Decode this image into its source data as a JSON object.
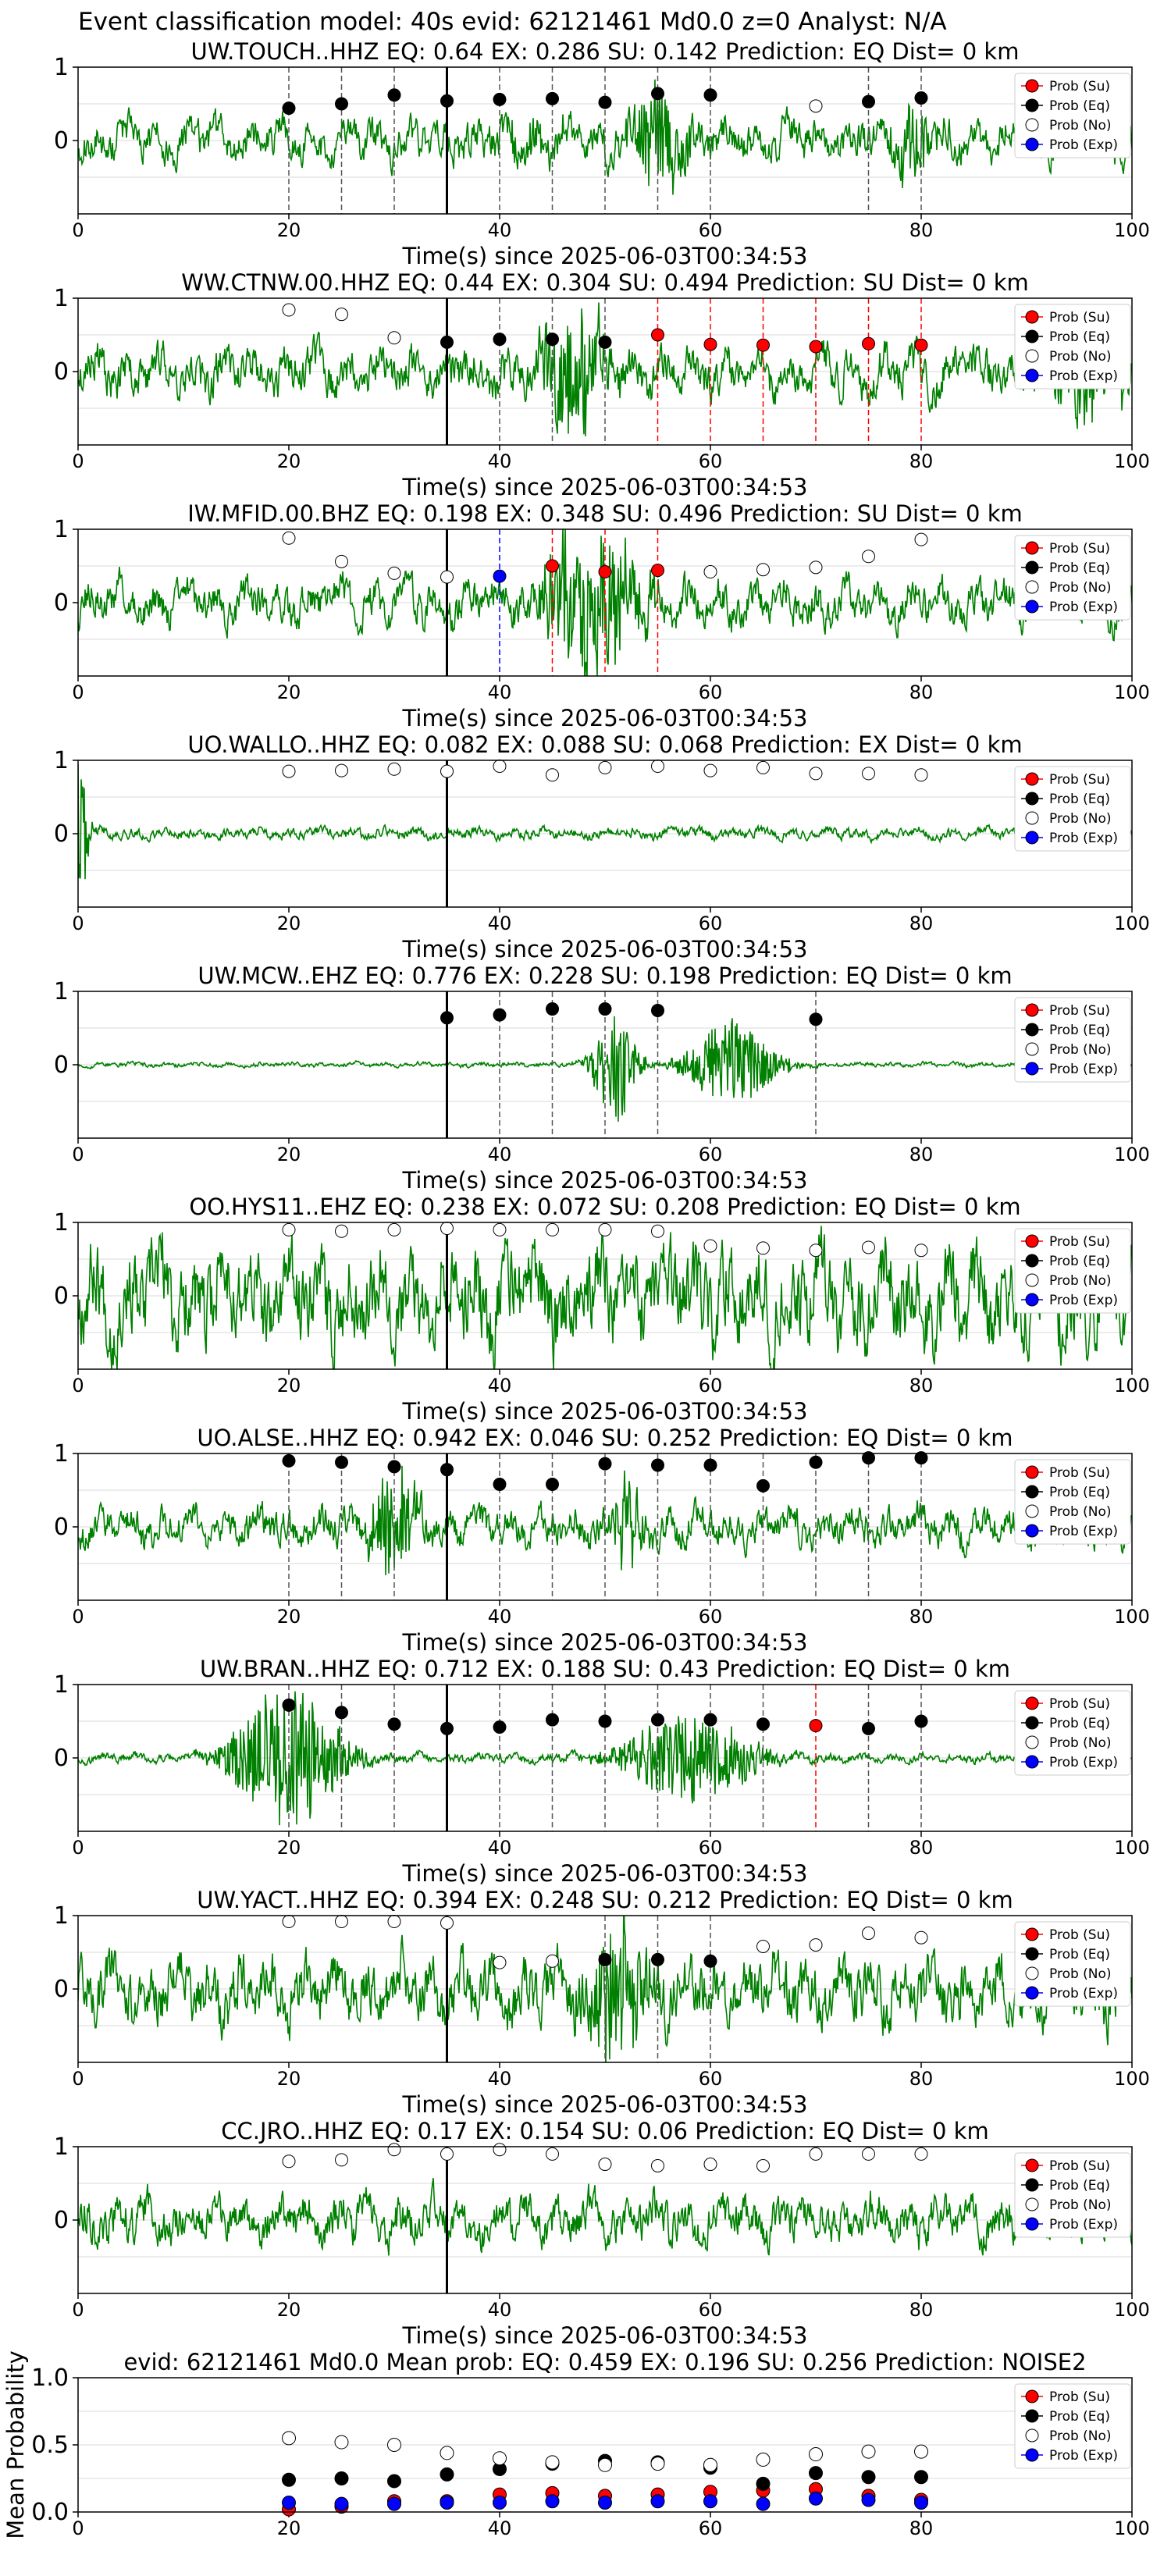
{
  "figure_title": "Event classification model: 40s evid: 62121461 Md0.0 z=0 Analyst: N/A",
  "legend_labels": [
    "Prob (Su)",
    "Prob (Eq)",
    "Prob (No)",
    "Prob (Exp)"
  ],
  "colors": {
    "waveform": "#008000",
    "su": "#ff0000",
    "eq": "#000000",
    "no": "#ffffff",
    "exp": "#0000ff",
    "grid": "#d9d9d9"
  },
  "xlabel": "Time(s) since 2025-06-03T00:34:53",
  "chart_data": [
    {
      "type": "line+scatter",
      "title": "UW.TOUCH..HHZ   EQ: 0.64  EX: 0.286  SU: 0.142   Prediction: EQ    Dist= 0 km",
      "xlim": [
        0,
        100
      ],
      "ylim": [
        -1,
        1
      ],
      "xticks": [
        0,
        20,
        40,
        60,
        80,
        100
      ],
      "yticks": [
        0,
        1
      ],
      "event_line": 35,
      "points_x": [
        20,
        25,
        30,
        35,
        40,
        45,
        50,
        55,
        60,
        70,
        75,
        80
      ],
      "points_class": [
        "eq",
        "eq",
        "eq",
        "eq",
        "eq",
        "eq",
        "eq",
        "eq",
        "eq",
        "no",
        "eq",
        "eq"
      ],
      "points_y": [
        0.44,
        0.5,
        0.62,
        0.54,
        0.56,
        0.57,
        0.52,
        0.64,
        0.62,
        0.47,
        0.53,
        0.58
      ],
      "waveform": {
        "seed": 11,
        "amp": 0.26,
        "bursts": [
          [
            55,
            0.5,
            3
          ],
          [
            79,
            0.45,
            2
          ],
          [
            43,
            0.2,
            3
          ]
        ]
      }
    },
    {
      "type": "line+scatter",
      "title": "WW.CTNW.00.HHZ   EQ: 0.44  EX: 0.304  SU: 0.494   Prediction: SU    Dist= 0 km",
      "xlim": [
        0,
        100
      ],
      "ylim": [
        -1,
        1
      ],
      "xticks": [
        0,
        20,
        40,
        60,
        80,
        100
      ],
      "yticks": [
        0,
        1
      ],
      "event_line": 35,
      "points_x": [
        20,
        25,
        30,
        35,
        40,
        45,
        50,
        55,
        60,
        65,
        70,
        75,
        80
      ],
      "points_class": [
        "no",
        "no",
        "no",
        "eq",
        "eq",
        "eq",
        "eq",
        "su",
        "su",
        "su",
        "su",
        "su",
        "su"
      ],
      "points_y": [
        0.84,
        0.78,
        0.46,
        0.4,
        0.44,
        0.44,
        0.4,
        0.5,
        0.37,
        0.36,
        0.34,
        0.38,
        0.36
      ],
      "waveform": {
        "seed": 23,
        "amp": 0.3,
        "bursts": [
          [
            47,
            0.85,
            3
          ],
          [
            96,
            0.5,
            4
          ]
        ]
      }
    },
    {
      "type": "line+scatter",
      "title": "IW.MFID.00.BHZ   EQ: 0.198  EX: 0.348  SU: 0.496   Prediction: SU    Dist= 0 km",
      "xlim": [
        0,
        100
      ],
      "ylim": [
        -1,
        1
      ],
      "xticks": [
        0,
        20,
        40,
        60,
        80,
        100
      ],
      "yticks": [
        0,
        1
      ],
      "event_line": 35,
      "points_x": [
        20,
        25,
        30,
        35,
        40,
        45,
        50,
        55,
        60,
        65,
        70,
        75,
        80
      ],
      "points_class": [
        "no",
        "no",
        "no",
        "no",
        "exp",
        "su",
        "su",
        "su",
        "no",
        "no",
        "no",
        "no",
        "no"
      ],
      "points_y": [
        0.88,
        0.56,
        0.4,
        0.35,
        0.36,
        0.5,
        0.42,
        0.44,
        0.42,
        0.45,
        0.48,
        0.63,
        0.86
      ],
      "waveform": {
        "seed": 37,
        "amp": 0.28,
        "bursts": [
          [
            49,
            0.9,
            4
          ],
          [
            46,
            0.5,
            2
          ]
        ]
      }
    },
    {
      "type": "line+scatter",
      "title": "UO.WALLO..HHZ   EQ: 0.082  EX: 0.088  SU: 0.068   Prediction: EX    Dist= 0 km",
      "xlim": [
        0,
        100
      ],
      "ylim": [
        -1,
        1
      ],
      "xticks": [
        0,
        20,
        40,
        60,
        80,
        100
      ],
      "yticks": [
        0,
        1
      ],
      "event_line": 35,
      "points_x": [
        20,
        25,
        30,
        35,
        40,
        45,
        50,
        55,
        60,
        65,
        70,
        75,
        80
      ],
      "points_class": [
        "no",
        "no",
        "no",
        "no",
        "no",
        "no",
        "no",
        "no",
        "no",
        "no",
        "no",
        "no",
        "no"
      ],
      "points_y": [
        0.85,
        0.86,
        0.88,
        0.85,
        0.92,
        0.8,
        0.9,
        0.92,
        0.86,
        0.9,
        0.82,
        0.82,
        0.8
      ],
      "waveform": {
        "seed": 41,
        "amp": 0.07,
        "bursts": [
          [
            0,
            0.9,
            1
          ]
        ]
      }
    },
    {
      "type": "line+scatter",
      "title": "UW.MCW..EHZ   EQ: 0.776  EX: 0.228  SU: 0.198   Prediction: EQ    Dist= 0 km",
      "xlim": [
        0,
        100
      ],
      "ylim": [
        -1,
        1
      ],
      "xticks": [
        0,
        20,
        40,
        60,
        80,
        100
      ],
      "yticks": [
        0,
        1
      ],
      "event_line": 35,
      "points_x": [
        35,
        40,
        45,
        50,
        55,
        70
      ],
      "points_class": [
        "eq",
        "eq",
        "eq",
        "eq",
        "eq",
        "eq"
      ],
      "points_y": [
        0.64,
        0.68,
        0.76,
        0.76,
        0.74,
        0.62
      ],
      "waveform": {
        "seed": 53,
        "amp": 0.03,
        "bursts": [
          [
            51,
            0.7,
            2
          ],
          [
            62,
            0.55,
            4
          ]
        ]
      }
    },
    {
      "type": "line+scatter",
      "title": "OO.HYS11..EHZ   EQ: 0.238  EX: 0.072  SU: 0.208   Prediction: EQ    Dist= 0 km",
      "xlim": [
        0,
        100
      ],
      "ylim": [
        -1,
        1
      ],
      "xticks": [
        0,
        20,
        40,
        60,
        80,
        100
      ],
      "yticks": [
        0,
        1
      ],
      "event_line": 35,
      "points_x": [
        20,
        25,
        30,
        35,
        40,
        45,
        50,
        55,
        60,
        65,
        70,
        75,
        80
      ],
      "points_class": [
        "no",
        "no",
        "no",
        "no",
        "no",
        "no",
        "no",
        "no",
        "no",
        "no",
        "no",
        "no",
        "no"
      ],
      "points_y": [
        0.9,
        0.88,
        0.9,
        0.92,
        0.9,
        0.9,
        0.9,
        0.88,
        0.68,
        0.65,
        0.62,
        0.66,
        0.62
      ],
      "waveform": {
        "seed": 67,
        "amp": 0.62,
        "bursts": []
      }
    },
    {
      "type": "line+scatter",
      "title": "UO.ALSE..HHZ   EQ: 0.942  EX: 0.046  SU: 0.252   Prediction: EQ    Dist= 0 km",
      "xlim": [
        0,
        100
      ],
      "ylim": [
        -1,
        1
      ],
      "xticks": [
        0,
        20,
        40,
        60,
        80,
        100
      ],
      "yticks": [
        0,
        1
      ],
      "event_line": 35,
      "points_x": [
        20,
        25,
        30,
        35,
        40,
        45,
        50,
        55,
        60,
        65,
        70,
        75,
        80
      ],
      "points_class": [
        "eq",
        "eq",
        "eq",
        "eq",
        "eq",
        "eq",
        "eq",
        "eq",
        "eq",
        "eq",
        "eq",
        "eq",
        "eq"
      ],
      "points_y": [
        0.9,
        0.88,
        0.82,
        0.78,
        0.58,
        0.58,
        0.86,
        0.84,
        0.84,
        0.56,
        0.88,
        0.94,
        0.94
      ],
      "waveform": {
        "seed": 79,
        "amp": 0.24,
        "bursts": [
          [
            30,
            0.7,
            2
          ],
          [
            52,
            0.6,
            1.5
          ]
        ]
      }
    },
    {
      "type": "line+scatter",
      "title": "UW.BRAN..HHZ   EQ: 0.712  EX: 0.188  SU: 0.43   Prediction: EQ    Dist= 0 km",
      "xlim": [
        0,
        100
      ],
      "ylim": [
        -1,
        1
      ],
      "xticks": [
        0,
        20,
        40,
        60,
        80,
        100
      ],
      "yticks": [
        0,
        1
      ],
      "event_line": 35,
      "points_x": [
        20,
        25,
        30,
        35,
        40,
        45,
        50,
        55,
        60,
        65,
        70,
        75,
        80
      ],
      "points_class": [
        "eq",
        "eq",
        "eq",
        "eq",
        "eq",
        "eq",
        "eq",
        "eq",
        "eq",
        "eq",
        "su",
        "eq",
        "eq"
      ],
      "points_y": [
        0.72,
        0.62,
        0.46,
        0.4,
        0.42,
        0.52,
        0.5,
        0.52,
        0.52,
        0.46,
        0.44,
        0.4,
        0.5
      ],
      "waveform": {
        "seed": 97,
        "amp": 0.06,
        "bursts": [
          [
            20,
            0.9,
            5
          ],
          [
            58,
            0.55,
            6
          ]
        ]
      }
    },
    {
      "type": "line+scatter",
      "title": "UW.YACT..HHZ   EQ: 0.394  EX: 0.248  SU: 0.212   Prediction: EQ    Dist= 0 km",
      "xlim": [
        0,
        100
      ],
      "ylim": [
        -1,
        1
      ],
      "xticks": [
        0,
        20,
        40,
        60,
        80,
        100
      ],
      "yticks": [
        0,
        1
      ],
      "event_line": 35,
      "points_x": [
        20,
        25,
        30,
        35,
        40,
        45,
        50,
        55,
        60,
        65,
        70,
        75,
        80
      ],
      "points_class": [
        "no",
        "no",
        "no",
        "no",
        "no",
        "no",
        "eq",
        "eq",
        "eq",
        "no",
        "no",
        "no",
        "no"
      ],
      "points_y": [
        0.92,
        0.92,
        0.92,
        0.9,
        0.36,
        0.38,
        0.4,
        0.4,
        0.38,
        0.58,
        0.6,
        0.76,
        0.7
      ],
      "waveform": {
        "seed": 101,
        "amp": 0.42,
        "bursts": [
          [
            51,
            0.8,
            3
          ]
        ]
      }
    },
    {
      "type": "line+scatter",
      "title": "CC.JRO..HHZ   EQ: 0.17  EX: 0.154  SU: 0.06   Prediction: EQ    Dist= 0 km",
      "xlim": [
        0,
        100
      ],
      "ylim": [
        -1,
        1
      ],
      "xticks": [
        0,
        20,
        40,
        60,
        80,
        100
      ],
      "yticks": [
        0,
        1
      ],
      "event_line": 35,
      "points_x": [
        20,
        25,
        30,
        35,
        40,
        45,
        50,
        55,
        60,
        65,
        70,
        75,
        80
      ],
      "points_class": [
        "no",
        "no",
        "no",
        "no",
        "no",
        "no",
        "no",
        "no",
        "no",
        "no",
        "no",
        "no",
        "no"
      ],
      "points_y": [
        0.8,
        0.82,
        0.96,
        0.9,
        0.96,
        0.9,
        0.76,
        0.74,
        0.76,
        0.74,
        0.9,
        0.9,
        0.9
      ],
      "waveform": {
        "seed": 113,
        "amp": 0.3,
        "bursts": []
      }
    },
    {
      "type": "scatter",
      "title": "evid: 62121461  Md0.0   Mean prob:   EQ: 0.459  EX: 0.196  SU: 0.256   Prediction: NOISE2",
      "ylabel": "Mean Probability",
      "xlim": [
        0,
        100
      ],
      "ylim": [
        0,
        1
      ],
      "xticks": [
        0,
        20,
        40,
        60,
        80,
        100
      ],
      "yticks": [
        0.0,
        0.5,
        1.0
      ],
      "x": [
        20,
        25,
        30,
        35,
        40,
        45,
        50,
        55,
        60,
        65,
        70,
        75,
        80
      ],
      "series": [
        {
          "name": "Prob (Su)",
          "values": [
            0.02,
            0.04,
            0.08,
            0.08,
            0.13,
            0.14,
            0.12,
            0.13,
            0.15,
            0.16,
            0.17,
            0.12,
            0.09
          ]
        },
        {
          "name": "Prob (Eq)",
          "values": [
            0.24,
            0.25,
            0.23,
            0.28,
            0.32,
            0.36,
            0.38,
            0.37,
            0.33,
            0.21,
            0.29,
            0.26,
            0.26
          ]
        },
        {
          "name": "Prob (No)",
          "values": [
            0.55,
            0.52,
            0.5,
            0.44,
            0.4,
            0.37,
            0.35,
            0.36,
            0.35,
            0.39,
            0.43,
            0.45,
            0.45
          ]
        },
        {
          "name": "Prob (Exp)",
          "values": [
            0.07,
            0.06,
            0.06,
            0.07,
            0.07,
            0.08,
            0.07,
            0.08,
            0.08,
            0.06,
            0.1,
            0.09,
            0.07
          ]
        }
      ]
    }
  ]
}
